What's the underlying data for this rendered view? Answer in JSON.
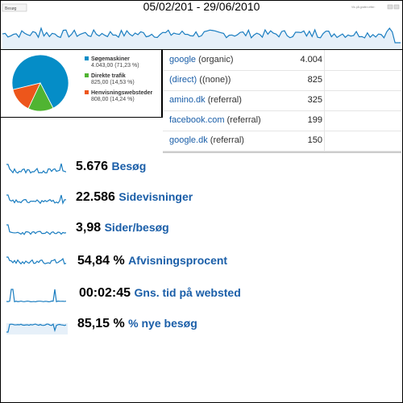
{
  "header": {
    "date_range": "05/02/201 - 29/06/2010",
    "metric_select": "Besøg",
    "graph_mode": "Vis på grafen efter:"
  },
  "pie": {
    "legend": [
      {
        "label": "Søgemaskiner",
        "value": "4.043,00 (71,23 %)",
        "color": "#058dc7",
        "share": 71.23
      },
      {
        "label": "Direkte trafik",
        "value": "825,00 (14,53 %)",
        "color": "#50b432",
        "share": 14.53
      },
      {
        "label": "Henvisningswebsteder",
        "value": "808,00 (14,24 %)",
        "color": "#ed561b",
        "share": 14.24
      }
    ]
  },
  "referrers": [
    {
      "source": "google",
      "kind": "(organic)",
      "count": "4.004"
    },
    {
      "source": "(direct)",
      "kind": "((none))",
      "count": "825"
    },
    {
      "source": "amino.dk",
      "kind": "(referral)",
      "count": "325"
    },
    {
      "source": "facebook.com",
      "kind": "(referral)",
      "count": "199"
    },
    {
      "source": "google.dk",
      "kind": "(referral)",
      "count": "150"
    }
  ],
  "metrics": [
    {
      "value": "5.676",
      "label": "Besøg"
    },
    {
      "value": "22.586",
      "label": "Sidevisninger"
    },
    {
      "value": "3,98",
      "label": "Sider/besøg"
    },
    {
      "value": "54,84 %",
      "label": "Afvisningsprocent"
    },
    {
      "value": "00:02:45",
      "label": "Gns. tid på websted"
    },
    {
      "value": "85,15 %",
      "label": "% nye besøg"
    }
  ],
  "colors": {
    "line": "#1a7dc0",
    "area": "#e6f0f9",
    "link": "#1a5ea8"
  }
}
